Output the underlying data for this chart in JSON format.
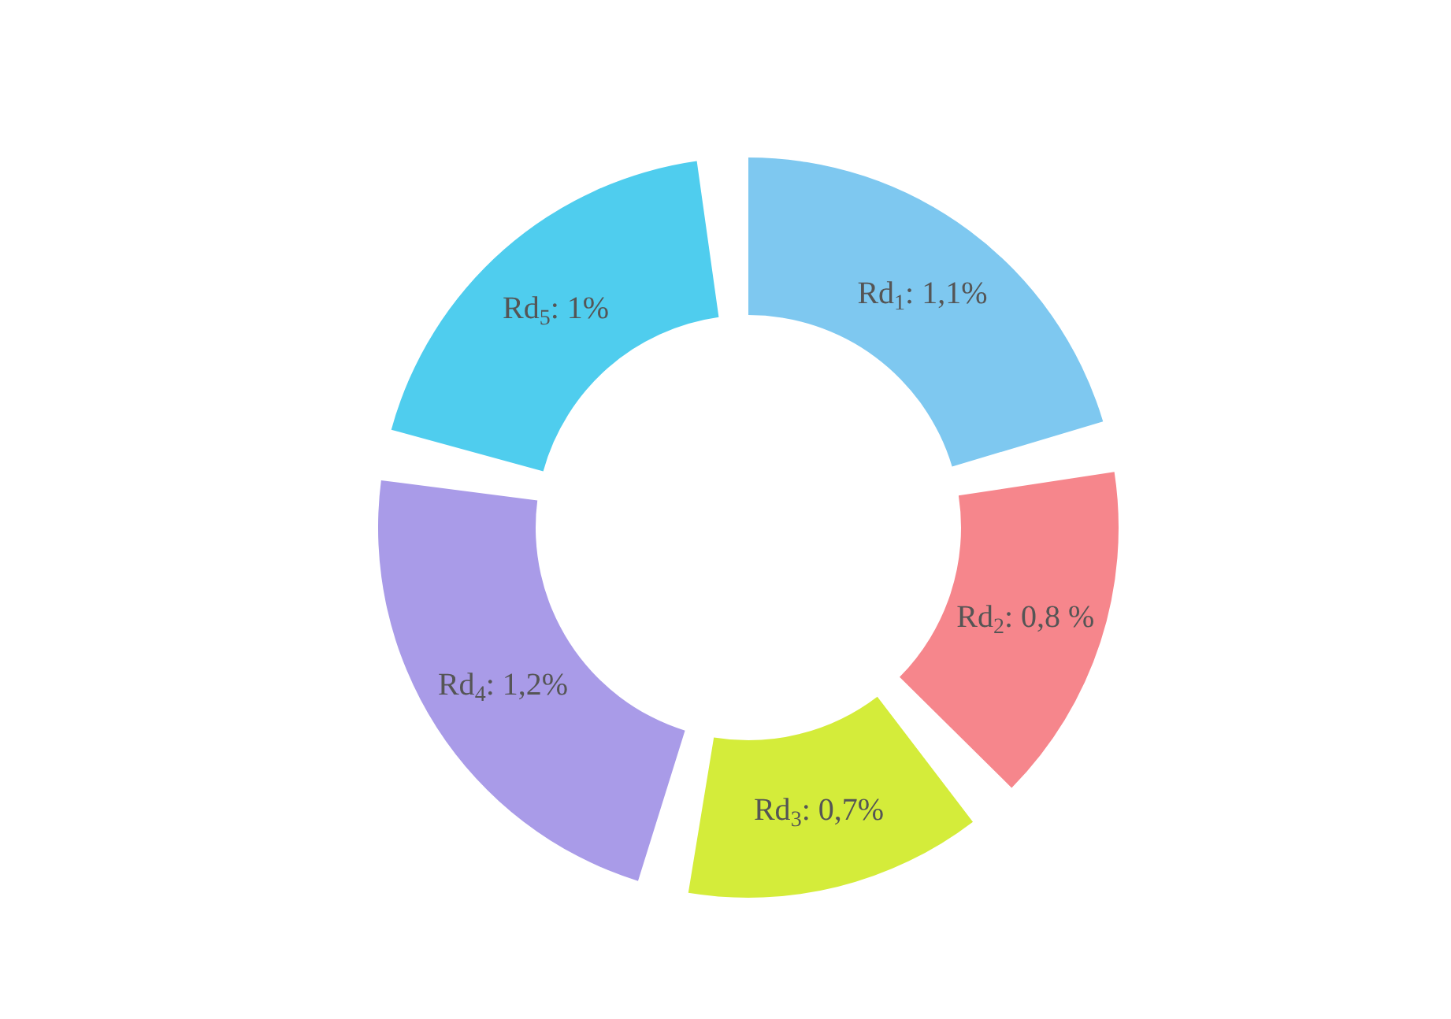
{
  "chart_data": {
    "type": "donut",
    "categories": [
      "Rd$_{1}$",
      "Rd$_{2}$",
      "Rd$_{3}$",
      "Rd$_{4}$",
      "Rd$_{5}$"
    ],
    "values": [
      1.1,
      0.8,
      0.7,
      1.2,
      1
    ],
    "value_labels": [
      ": 1,1%",
      ": 0,8 %",
      ": 0,7%",
      ": 1,2%",
      ": 1%"
    ],
    "colors": [
      "#7ec8f0",
      "#f6868c",
      "#d4ec3a",
      "#a99be8",
      "#4fcdee"
    ],
    "legend": false
  }
}
